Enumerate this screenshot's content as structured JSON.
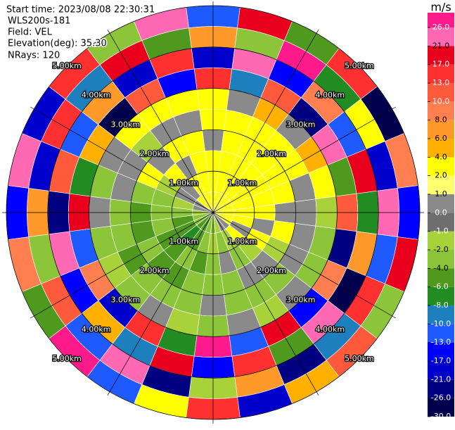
{
  "chart_data": {
    "type": "ppi",
    "info_lines": [
      "Start time: 2023/08/08 22:30:31",
      "WLS200s-181",
      "Field: VEL",
      "Elevation(deg): 35.30",
      "NRays: 120"
    ],
    "rlim": [
      0,
      5
    ],
    "rings": [
      {
        "value": 1,
        "label": "1.00km"
      },
      {
        "value": 2,
        "label": "2.00km"
      },
      {
        "value": 3,
        "label": "3.00km"
      },
      {
        "value": 4,
        "label": "4.00km"
      },
      {
        "value": 5,
        "label": "5.00km"
      }
    ],
    "colorbar": {
      "unit": "m/s",
      "clim": [
        -30,
        30
      ],
      "ticks": [
        {
          "value": -30,
          "label": "-30.0"
        },
        {
          "value": -26,
          "label": "-26.0"
        },
        {
          "value": -21,
          "label": "-21.0"
        },
        {
          "value": -17,
          "label": "-17.0"
        },
        {
          "value": -13,
          "label": "-13.0"
        },
        {
          "value": -10,
          "label": "-10.0"
        },
        {
          "value": -8,
          "label": "-8.0"
        },
        {
          "value": -6,
          "label": "-6.0"
        },
        {
          "value": -4,
          "label": "-4.0"
        },
        {
          "value": -2,
          "label": "-2.0"
        },
        {
          "value": -1,
          "label": "-1.0"
        },
        {
          "value": 0,
          "label": "0.0"
        },
        {
          "value": 1,
          "label": "1.0"
        },
        {
          "value": 2,
          "label": "2.0"
        },
        {
          "value": 4,
          "label": "4.0"
        },
        {
          "value": 6,
          "label": "6.0"
        },
        {
          "value": 8,
          "label": "8.0"
        },
        {
          "value": 10,
          "label": "10.0"
        },
        {
          "value": 13,
          "label": "13.0"
        },
        {
          "value": 17,
          "label": "17.0"
        },
        {
          "value": 21,
          "label": "21.0"
        },
        {
          "value": 26,
          "label": "26.0"
        }
      ],
      "colors": [
        "#00004d",
        "#000080",
        "#0000cd",
        "#0000ff",
        "#1e5aff",
        "#1e7fbf",
        "#228b22",
        "#4f9a1e",
        "#8cc43a",
        "#a8d13a",
        "#6e6e6e",
        "#8a8a8a",
        "#ffff70",
        "#ffff00",
        "#ffb000",
        "#ff9a2a",
        "#ff7f50",
        "#ff5a3c",
        "#ff3030",
        "#e8001c",
        "#ff69b4",
        "#ff1a8c"
      ]
    },
    "field": {
      "azimuths": [
        0,
        15,
        30,
        45,
        60,
        75,
        90,
        105,
        120,
        135,
        150,
        165,
        180,
        195,
        210,
        225,
        240,
        255,
        270,
        285,
        300,
        315,
        330,
        345
      ],
      "range_edges": [
        0,
        0.5,
        1,
        1.5,
        2,
        2.5,
        3,
        3.5,
        4,
        4.5,
        5
      ],
      "values": [
        [
          2.5,
          3,
          3,
          0.5,
          3,
          2.5,
          15,
          -20,
          7,
          -12
        ],
        [
          3,
          3,
          2.5,
          3,
          3,
          0.5,
          -9,
          24,
          -3,
          19
        ],
        [
          3,
          3,
          3,
          3,
          3,
          5,
          11,
          -15,
          28,
          -5
        ],
        [
          3,
          3,
          3,
          3,
          2.5,
          0.5,
          -24,
          9,
          -7,
          14
        ],
        [
          3,
          3,
          3,
          2.5,
          3,
          5,
          22,
          -11,
          3,
          -27
        ],
        [
          3,
          3,
          3,
          3,
          0.5,
          3,
          -5,
          17,
          -19,
          8
        ],
        [
          3,
          3,
          3,
          0.5,
          0.5,
          -1.5,
          12,
          -8,
          25,
          -16
        ],
        [
          2.5,
          3,
          0.5,
          3,
          0.5,
          -3,
          -22,
          6,
          -13,
          20
        ],
        [
          3,
          0.5,
          3,
          -1.5,
          0.5,
          -3,
          9,
          -28,
          15,
          -4
        ],
        [
          0.5,
          3,
          -1.5,
          0.5,
          -3,
          0.5,
          -16,
          23,
          -9,
          11
        ],
        [
          0.5,
          -1.5,
          -3,
          0.5,
          -3,
          -1.5,
          18,
          -6,
          -23,
          5
        ],
        [
          -1.5,
          -3,
          0.5,
          -3,
          -3,
          0.5,
          -11,
          13,
          7,
          -19
        ],
        [
          -3,
          -1.5,
          -3,
          -3,
          0.5,
          -3,
          26,
          -14,
          -2,
          16
        ],
        [
          -3,
          -3,
          -5,
          -3,
          -3,
          -1.5,
          -7,
          19,
          -25,
          3
        ],
        [
          -5,
          -5,
          -3,
          -5,
          -3,
          0.5,
          14,
          -9,
          21,
          -12
        ],
        [
          -5,
          -7,
          -5,
          -5,
          -3,
          -3,
          -20,
          4,
          -11,
          27
        ],
        [
          -3,
          -5,
          -5,
          -3,
          -5,
          -1.5,
          8,
          -17,
          12,
          -6
        ],
        [
          -3,
          -5,
          -3,
          -5,
          -3,
          -3,
          -13,
          22,
          -4,
          9
        ],
        [
          -1.5,
          -3,
          -3,
          -5,
          -3,
          0.5,
          19,
          -26,
          6,
          -15
        ],
        [
          0.5,
          -1.5,
          -3,
          -3,
          0.5,
          -3,
          -8,
          11,
          -18,
          24
        ],
        [
          0.5,
          0.5,
          -1.5,
          3,
          0.5,
          0.5,
          5,
          -12,
          16,
          -21
        ],
        [
          3,
          0.5,
          3,
          0.5,
          -1.5,
          3,
          -27,
          7,
          -10,
          13
        ],
        [
          3,
          3,
          0.5,
          3,
          0.5,
          3,
          10,
          -19,
          20,
          -3
        ],
        [
          3,
          2.5,
          3,
          3,
          0.5,
          3,
          -14,
          16,
          -6,
          23
        ]
      ]
    }
  }
}
